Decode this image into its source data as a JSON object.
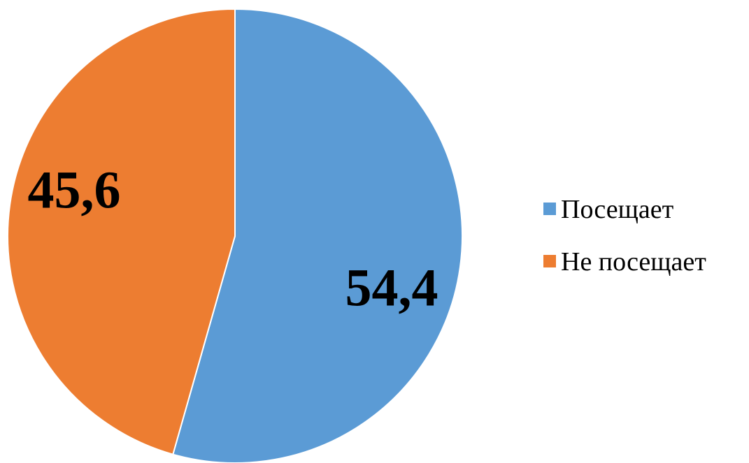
{
  "chart_data": {
    "type": "pie",
    "categories": [
      "Посещает",
      "Не посещает"
    ],
    "values": [
      54.4,
      45.6
    ],
    "data_labels": [
      "54,4",
      "45,6"
    ],
    "colors": [
      "#5B9BD5",
      "#ED7D31"
    ],
    "start_angle_deg": 0,
    "direction": "clockwise",
    "legend": {
      "placement": "right",
      "entries": [
        "Посещает",
        "Не посещает"
      ]
    }
  }
}
